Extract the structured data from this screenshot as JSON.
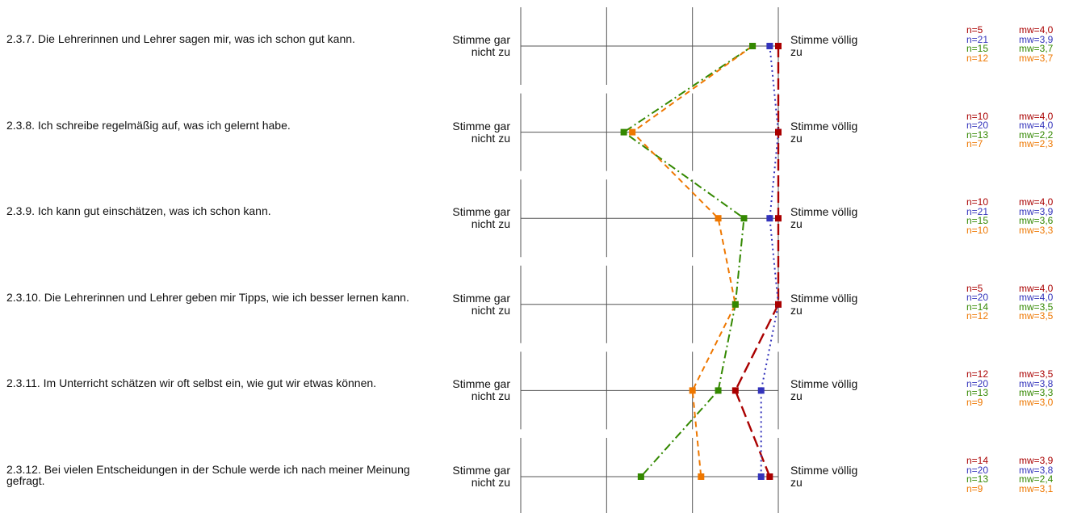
{
  "chart_data": {
    "type": "line",
    "orientation": "horizontal-profile",
    "scale": {
      "min": 1,
      "max": 4
    },
    "scale_labels": {
      "left": "Stimme gar nicht zu",
      "right": "Stimme völlig zu"
    },
    "colors": [
      "#aa0000",
      "#3333bb",
      "#338800",
      "#ee7700"
    ],
    "line_styles": [
      "long-dash",
      "dotted",
      "dash-dot",
      "dashed"
    ],
    "items": [
      {
        "label": "2.3.7. Die Lehrerinnen und Lehrer sagen mir, was ich schon gut kann.",
        "stats": [
          {
            "n": "n=5",
            "mw": "mw=4,0"
          },
          {
            "n": "n=21",
            "mw": "mw=3,9"
          },
          {
            "n": "n=15",
            "mw": "mw=3,7"
          },
          {
            "n": "n=12",
            "mw": "mw=3,7"
          }
        ]
      },
      {
        "label": "2.3.8. Ich schreibe regelmäßig auf, was ich gelernt habe.",
        "stats": [
          {
            "n": "n=10",
            "mw": "mw=4,0"
          },
          {
            "n": "n=20",
            "mw": "mw=4,0"
          },
          {
            "n": "n=13",
            "mw": "mw=2,2"
          },
          {
            "n": "n=7",
            "mw": "mw=2,3"
          }
        ]
      },
      {
        "label": "2.3.9. Ich kann gut einschätzen, was ich schon kann.",
        "stats": [
          {
            "n": "n=10",
            "mw": "mw=4,0"
          },
          {
            "n": "n=21",
            "mw": "mw=3,9"
          },
          {
            "n": "n=15",
            "mw": "mw=3,6"
          },
          {
            "n": "n=10",
            "mw": "mw=3,3"
          }
        ]
      },
      {
        "label": "2.3.10. Die Lehrerinnen und Lehrer geben mir Tipps, wie ich besser lernen kann.",
        "stats": [
          {
            "n": "n=5",
            "mw": "mw=4,0"
          },
          {
            "n": "n=20",
            "mw": "mw=4,0"
          },
          {
            "n": "n=14",
            "mw": "mw=3,5"
          },
          {
            "n": "n=12",
            "mw": "mw=3,5"
          }
        ]
      },
      {
        "label": "2.3.11. Im Unterricht schätzen wir oft selbst ein, wie gut wir etwas können.",
        "stats": [
          {
            "n": "n=12",
            "mw": "mw=3,5"
          },
          {
            "n": "n=20",
            "mw": "mw=3,8"
          },
          {
            "n": "n=13",
            "mw": "mw=3,3"
          },
          {
            "n": "n=9",
            "mw": "mw=3,0"
          }
        ]
      },
      {
        "label": "2.3.12. Bei vielen Entscheidungen in der Schule werde ich nach meiner Meinung gefragt.",
        "stats": [
          {
            "n": "n=14",
            "mw": "mw=3,9"
          },
          {
            "n": "n=20",
            "mw": "mw=3,8"
          },
          {
            "n": "n=13",
            "mw": "mw=2,4"
          },
          {
            "n": "n=9",
            "mw": "mw=3,1"
          }
        ]
      }
    ],
    "series": [
      {
        "values": [
          4.0,
          4.0,
          4.0,
          4.0,
          3.5,
          3.9
        ]
      },
      {
        "values": [
          3.9,
          4.0,
          3.9,
          4.0,
          3.8,
          3.8
        ]
      },
      {
        "values": [
          3.7,
          2.2,
          3.6,
          3.5,
          3.3,
          2.4
        ]
      },
      {
        "values": [
          3.7,
          2.3,
          3.3,
          3.5,
          3.0,
          3.1
        ]
      }
    ]
  }
}
